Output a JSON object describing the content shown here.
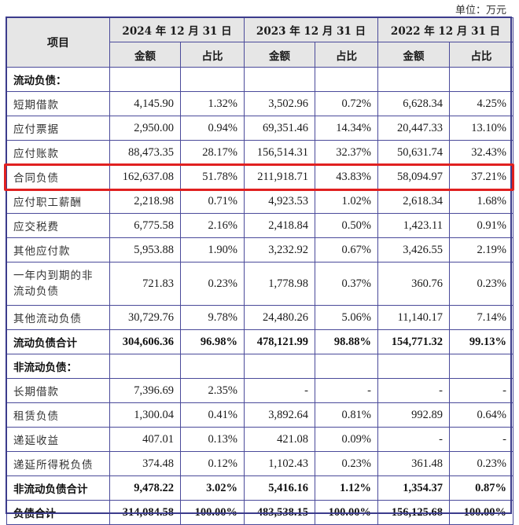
{
  "unit_label": "单位：万元",
  "header": {
    "item": "项目",
    "periods": [
      "2024 年 12 月 31 日",
      "2023 年 12 月 31 日",
      "2022 年 12 月 31 日"
    ],
    "amount": "金额",
    "ratio": "占比"
  },
  "highlight": {
    "row": "合同负债",
    "color": "#e02020"
  },
  "rows": [
    {
      "label": "流动负债：",
      "type": "section",
      "values": [
        "",
        "",
        "",
        "",
        "",
        ""
      ]
    },
    {
      "label": "短期借款",
      "type": "item",
      "values": [
        "4,145.90",
        "1.32%",
        "3,502.96",
        "0.72%",
        "6,628.34",
        "4.25%"
      ]
    },
    {
      "label": "应付票据",
      "type": "item",
      "values": [
        "2,950.00",
        "0.94%",
        "69,351.46",
        "14.34%",
        "20,447.33",
        "13.10%"
      ]
    },
    {
      "label": "应付账款",
      "type": "item",
      "values": [
        "88,473.35",
        "28.17%",
        "156,514.31",
        "32.37%",
        "50,631.74",
        "32.43%"
      ]
    },
    {
      "label": "合同负债",
      "type": "item",
      "values": [
        "162,637.08",
        "51.78%",
        "211,918.71",
        "43.83%",
        "58,094.97",
        "37.21%"
      ]
    },
    {
      "label": "应付职工薪酬",
      "type": "item",
      "values": [
        "2,218.98",
        "0.71%",
        "4,923.53",
        "1.02%",
        "2,618.34",
        "1.68%"
      ]
    },
    {
      "label": "应交税费",
      "type": "item",
      "values": [
        "6,775.58",
        "2.16%",
        "2,418.84",
        "0.50%",
        "1,423.11",
        "0.91%"
      ]
    },
    {
      "label": "其他应付款",
      "type": "item",
      "values": [
        "5,953.88",
        "1.90%",
        "3,232.92",
        "0.67%",
        "3,426.55",
        "2.19%"
      ]
    },
    {
      "label": "一年内到期的非流动负债",
      "type": "item",
      "values": [
        "721.83",
        "0.23%",
        "1,778.98",
        "0.37%",
        "360.76",
        "0.23%"
      ]
    },
    {
      "label": "其他流动负债",
      "type": "item",
      "values": [
        "30,729.76",
        "9.78%",
        "24,480.26",
        "5.06%",
        "11,140.17",
        "7.14%"
      ]
    },
    {
      "label": "流动负债合计",
      "type": "total",
      "values": [
        "304,606.36",
        "96.98%",
        "478,121.99",
        "98.88%",
        "154,771.32",
        "99.13%"
      ]
    },
    {
      "label": "非流动负债：",
      "type": "section",
      "values": [
        "",
        "",
        "",
        "",
        "",
        ""
      ]
    },
    {
      "label": "长期借款",
      "type": "item",
      "values": [
        "7,396.69",
        "2.35%",
        "-",
        "-",
        "-",
        "-"
      ]
    },
    {
      "label": "租赁负债",
      "type": "item",
      "values": [
        "1,300.04",
        "0.41%",
        "3,892.64",
        "0.81%",
        "992.89",
        "0.64%"
      ]
    },
    {
      "label": "递延收益",
      "type": "item",
      "values": [
        "407.01",
        "0.13%",
        "421.08",
        "0.09%",
        "-",
        "-"
      ]
    },
    {
      "label": "递延所得税负债",
      "type": "item",
      "values": [
        "374.48",
        "0.12%",
        "1,102.43",
        "0.23%",
        "361.48",
        "0.23%"
      ]
    },
    {
      "label": "非流动负债合计",
      "type": "total",
      "values": [
        "9,478.22",
        "3.02%",
        "5,416.16",
        "1.12%",
        "1,354.37",
        "0.87%"
      ]
    },
    {
      "label": "负债合计",
      "type": "total",
      "values": [
        "314,084.58",
        "100.00%",
        "483,538.15",
        "100.00%",
        "156,125.68",
        "100.00%"
      ]
    }
  ]
}
